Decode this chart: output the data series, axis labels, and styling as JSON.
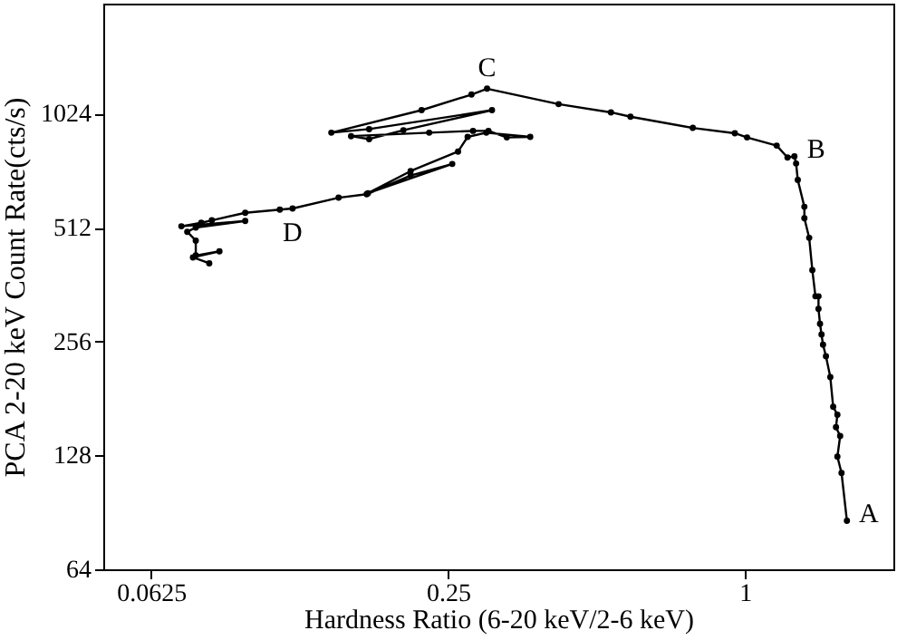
{
  "chart_data": {
    "type": "line",
    "xlabel": "Hardness Ratio (6-20 keV/2-6 keV)",
    "ylabel": "PCA 2-20 keV Count Rate(cts/s)",
    "log": "xy",
    "grid": false,
    "marker": "circle",
    "line_style": "solid",
    "xlim": [
      0.05,
      2
    ],
    "ylim": [
      64,
      2000
    ],
    "xticks": [
      0.0625,
      0.25,
      1
    ],
    "yticks": [
      64,
      128,
      256,
      512,
      1024
    ],
    "x": [
      1.61,
      1.57,
      1.54,
      1.56,
      1.53,
      1.54,
      1.51,
      1.49,
      1.46,
      1.44,
      1.43,
      1.42,
      1.41,
      1.41,
      1.39,
      1.37,
      1.35,
      1.32,
      1.32,
      1.28,
      1.27,
      1.26,
      1.22,
      1.16,
      1.01,
      0.954,
      0.784,
      0.586,
      0.535,
      0.419,
      0.3,
      0.279,
      0.221,
      0.145,
      0.173,
      0.307,
      0.203,
      0.173,
      0.159,
      0.229,
      0.281,
      0.302,
      0.329,
      0.367,
      0.299,
      0.274,
      0.262,
      0.21,
      0.172,
      0.255,
      0.21,
      0.171,
      0.15,
      0.121,
      0.114,
      0.097,
      0.083,
      0.079,
      0.072,
      0.097,
      0.077,
      0.074,
      0.077,
      0.077,
      0.086,
      0.076,
      0.082
    ],
    "series": [
      {
        "color": "#000000",
        "values": [
          86,
          115,
          127,
          144,
          152,
          164,
          172,
          206,
          234,
          251,
          267,
          285,
          312,
          337,
          337,
          395,
          481,
          542,
          581,
          684,
          756,
          790,
          784,
          843,
          886,
          909,
          939,
          1005,
          1032,
          1085,
          1192,
          1150,
          1046,
          912,
          932,
          1046,
          926,
          877,
          893,
          912,
          922,
          922,
          886,
          889,
          912,
          889,
          813,
          722,
          631,
          754,
          703,
          627,
          614,
          575,
          571,
          560,
          535,
          527,
          516,
          533,
          512,
          499,
          473,
          432,
          443,
          427,
          412
        ]
      }
    ],
    "annotations": [
      {
        "text": "A",
        "x": 1.61,
        "y": 86
      },
      {
        "text": "B",
        "x": 1.26,
        "y": 756
      },
      {
        "text": "C",
        "x": 0.3,
        "y": 1192
      },
      {
        "text": "D",
        "x": 0.121,
        "y": 575
      }
    ]
  }
}
